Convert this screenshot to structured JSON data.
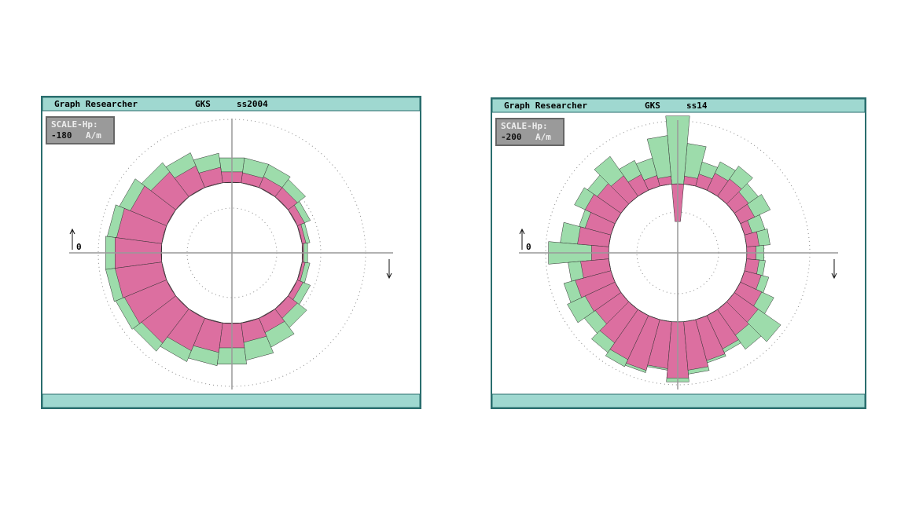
{
  "windows": [
    {
      "header": {
        "app": "Graph Researcher",
        "system": "GKS",
        "file": "ss2004"
      },
      "scale": {
        "label": "SCALE-Hp:",
        "value": "-180",
        "unit": "A/m"
      },
      "axis_label": "0",
      "chart_data": {
        "type": "polar",
        "rlim": [
          0,
          170
        ],
        "rticks": [
          57,
          113,
          170
        ],
        "base": 90,
        "theta": [
          0,
          15,
          30,
          45,
          60,
          75,
          90,
          105,
          120,
          135,
          150,
          165,
          180,
          195,
          210,
          225,
          240,
          255,
          270,
          285,
          300,
          315,
          330,
          345
        ],
        "series": [
          {
            "color": "#9ddcab",
            "values": [
              97,
              100,
              108,
              118,
              122,
              122,
              122,
              128,
              138,
              145,
              155,
              160,
              162,
              162,
              160,
              158,
              150,
              145,
              143,
              138,
              130,
              120,
              108,
              100
            ]
          },
          {
            "color": "#dc6fa0",
            "values": [
              92,
              95,
              100,
              105,
              105,
              103,
              104,
              110,
              120,
              130,
              140,
              148,
              150,
              150,
              148,
              145,
              135,
              128,
              122,
              115,
              110,
              105,
              98,
              94
            ]
          }
        ]
      }
    },
    {
      "header": {
        "app": "Graph Researcher",
        "system": "GKS",
        "file": "ss14"
      },
      "scale": {
        "label": "SCALE-Hp:",
        "value": "-200",
        "unit": "A/m"
      },
      "axis_label": "0",
      "chart_data": {
        "type": "polar",
        "rlim": [
          0,
          170
        ],
        "rticks": [
          52,
          110,
          168
        ],
        "base": 88,
        "theta": [
          0,
          10,
          20,
          30,
          40,
          50,
          60,
          70,
          80,
          90,
          100,
          110,
          120,
          130,
          140,
          150,
          160,
          170,
          180,
          190,
          200,
          210,
          220,
          230,
          240,
          250,
          260,
          270,
          280,
          290,
          300,
          310,
          320,
          330,
          340,
          350
        ],
        "series": [
          {
            "color": "#9ddcab",
            "values": [
              110,
              118,
              115,
              130,
              125,
              135,
              128,
              120,
              140,
              175,
              150,
              125,
              130,
              150,
              140,
              145,
              130,
              150,
              165,
              140,
              150,
              155,
              145,
              155,
              160,
              158,
              150,
              165,
              155,
              145,
              140,
              150,
              160,
              135,
              120,
              112
            ]
          },
          {
            "color": "#dc6fa0",
            "values": [
              100,
              104,
              98,
              108,
              110,
              115,
              112,
              104,
              98,
              40,
              98,
              102,
              110,
              120,
              125,
              130,
              122,
              128,
              110,
              124,
              135,
              130,
              128,
              140,
              150,
              155,
              148,
              160,
              150,
              142,
              135,
              128,
              125,
              118,
              110,
              104
            ]
          }
        ]
      }
    }
  ]
}
